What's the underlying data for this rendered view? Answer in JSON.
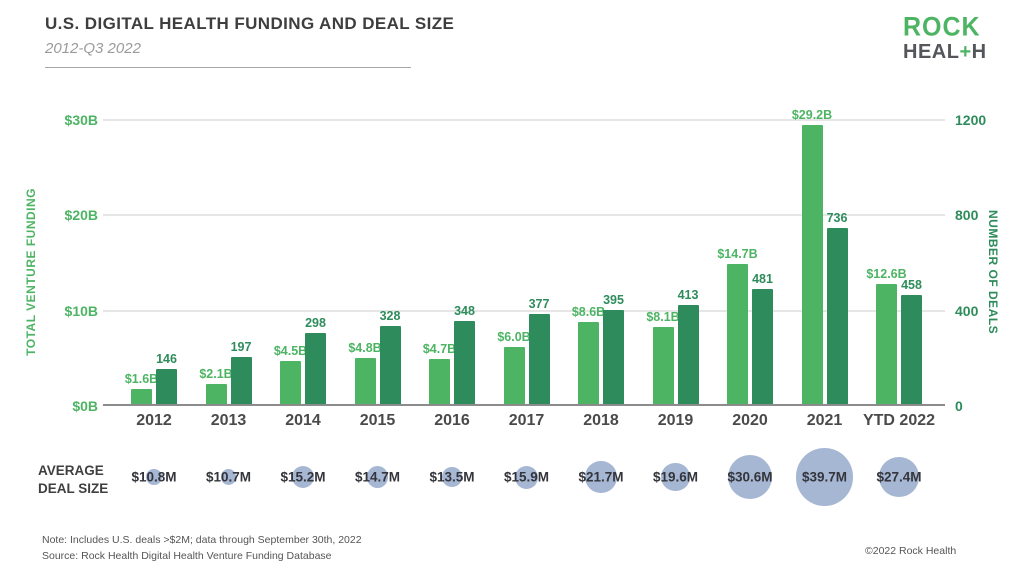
{
  "header": {
    "title": "U.S. DIGITAL HEALTH FUNDING AND DEAL SIZE",
    "subtitle": "2012-Q3 2022"
  },
  "logo": {
    "line1": "ROCK",
    "line2_a": "HEAL",
    "plus": "+",
    "line2_b": "H"
  },
  "colors": {
    "funding_green": "#4DB464",
    "deals_green": "#2E8C5C",
    "bubble_blue": "#A6B7D4"
  },
  "chart_data": {
    "type": "bar",
    "title": "U.S. Digital Health Funding and Deal Size, 2012-Q3 2022",
    "categories": [
      "2012",
      "2013",
      "2014",
      "2015",
      "2016",
      "2017",
      "2018",
      "2019",
      "2020",
      "2021",
      "YTD 2022"
    ],
    "series": [
      {
        "name": "Total Venture Funding",
        "unit": "$B",
        "values": [
          1.6,
          2.1,
          4.5,
          4.8,
          4.7,
          6.0,
          8.6,
          8.1,
          14.7,
          29.2,
          12.6
        ],
        "labels": [
          "$1.6B",
          "$2.1B",
          "$4.5B",
          "$4.8B",
          "$4.7B",
          "$6.0B",
          "$8.6B",
          "$8.1B",
          "$14.7B",
          "$29.2B",
          "$12.6B"
        ],
        "color": "#4DB464"
      },
      {
        "name": "Number of Deals",
        "unit": "deals",
        "values": [
          146,
          197,
          298,
          328,
          348,
          377,
          395,
          413,
          481,
          736,
          458
        ],
        "labels": [
          "146",
          "197",
          "298",
          "328",
          "348",
          "377",
          "395",
          "413",
          "481",
          "736",
          "458"
        ],
        "color": "#2E8C5C"
      }
    ],
    "left_axis": {
      "label": "TOTAL VENTURE FUNDING",
      "ticks": [
        "$0B",
        "$10B",
        "$20B",
        "$30B"
      ],
      "min": 0,
      "max": 30,
      "grid": true
    },
    "right_axis": {
      "label": "NUMBER OF DEALS",
      "ticks": [
        "0",
        "400",
        "800",
        "1200"
      ],
      "min": 0,
      "max": 1200
    },
    "bubbles": {
      "label": "AVERAGE DEAL SIZE",
      "unit": "$M",
      "values": [
        10.8,
        10.7,
        15.2,
        14.7,
        13.5,
        15.9,
        21.7,
        19.6,
        30.6,
        39.7,
        27.4
      ],
      "labels": [
        "$10.8M",
        "$10.7M",
        "$15.2M",
        "$14.7M",
        "$13.5M",
        "$15.9M",
        "$21.7M",
        "$19.6M",
        "$30.6M",
        "$39.7M",
        "$27.4M"
      ],
      "color": "#A6B7D4"
    }
  },
  "footer": {
    "note": "Note: Includes U.S. deals >$2M; data through September 30th, 2022",
    "source": "Rock Health Digital Health Venture Funding Database",
    "source_prefix": "Source: ",
    "copyright": "©2022 Rock Health"
  }
}
